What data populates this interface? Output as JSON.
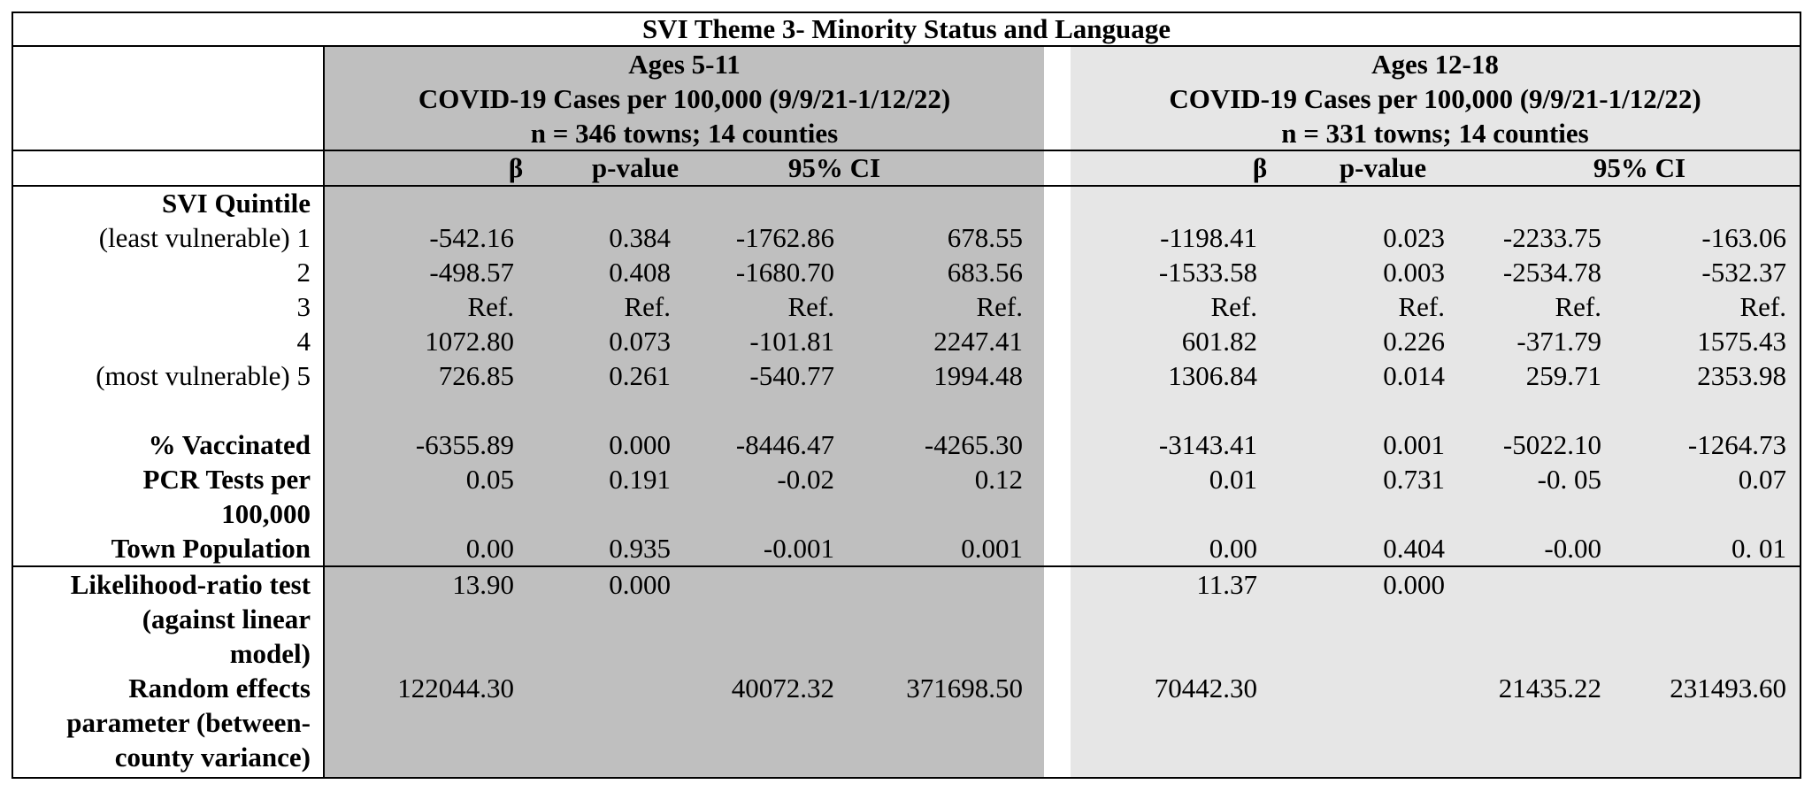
{
  "title": "SVI Theme 3- Minority Status and Language",
  "groups": [
    {
      "age": "Ages 5-11",
      "outcome": "COVID-19 Cases per 100,000 (9/9/21-1/12/22)",
      "n": "n = 346 towns; 14 counties",
      "bg_color": "#bfbfbf",
      "col_heads": {
        "beta": "β",
        "p": "p-value",
        "ci": "95% CI"
      },
      "rows": [
        [
          "-542.16",
          "0.384",
          "-1762.86",
          "678.55"
        ],
        [
          "-498.57",
          "0.408",
          "-1680.70",
          "683.56"
        ],
        [
          "Ref.",
          "Ref.",
          "Ref.",
          "Ref."
        ],
        [
          "1072.80",
          "0.073",
          "-101.81",
          "2247.41"
        ],
        [
          "726.85",
          "0.261",
          "-540.77",
          "1994.48"
        ],
        [
          "-6355.89",
          "0.000",
          "-8446.47",
          "-4265.30"
        ],
        [
          "0.05",
          "0.191",
          "-0.02",
          "0.12"
        ],
        [
          "0.00",
          "0.935",
          "-0.001",
          "0.001"
        ]
      ],
      "lr": [
        "13.90",
        "0.000"
      ],
      "re": [
        "122044.30",
        "40072.32",
        "371698.50"
      ]
    },
    {
      "age": "Ages 12-18",
      "outcome": "COVID-19 Cases per 100,000 (9/9/21-1/12/22)",
      "n": "n = 331 towns; 14 counties",
      "bg_color": "#e6e6e6",
      "col_heads": {
        "beta": "β",
        "p": "p-value",
        "ci": "95% CI"
      },
      "rows": [
        [
          "-1198.41",
          "0.023",
          "-2233.75",
          "-163.06"
        ],
        [
          "-1533.58",
          "0.003",
          "-2534.78",
          "-532.37"
        ],
        [
          "Ref.",
          "Ref.",
          "Ref.",
          "Ref."
        ],
        [
          "601.82",
          "0.226",
          "-371.79",
          "1575.43"
        ],
        [
          "1306.84",
          "0.014",
          "259.71",
          "2353.98"
        ],
        [
          "-3143.41",
          "0.001",
          "-5022.10",
          "-1264.73"
        ],
        [
          "0.01",
          "0.731",
          "-0. 05",
          "0.07"
        ],
        [
          "0.00",
          "0.404",
          "-0.00",
          "0. 01"
        ]
      ],
      "lr": [
        "11.37",
        "0.000"
      ],
      "re": [
        "70442.30",
        "21435.22",
        "231493.60"
      ]
    }
  ],
  "row_labels": {
    "svi_quintile": "SVI Quintile",
    "q1": "(least vulnerable) 1",
    "q2": "2",
    "q3": "3",
    "q4": "4",
    "q5": "(most vulnerable) 5",
    "vacc": "% Vaccinated",
    "pcr_1": "PCR Tests per",
    "pcr_2": "100,000",
    "town": "Town Population",
    "lr_1": "Likelihood-ratio test",
    "lr_2": "(against linear",
    "lr_3": "model)",
    "re_1": "Random effects",
    "re_2": "parameter (between-",
    "re_3": "county variance)"
  }
}
